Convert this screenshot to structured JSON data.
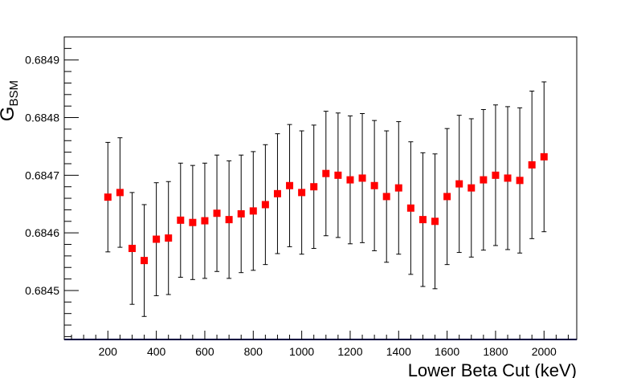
{
  "chart_data": {
    "type": "scatter",
    "title": "",
    "xlabel": "Lower Beta Cut (keV)",
    "ylabel_main": "G",
    "ylabel_sub": "BSM",
    "xlim": [
      20,
      2135
    ],
    "ylim": [
      0.684415,
      0.68494
    ],
    "x_ticks": [
      200,
      400,
      600,
      800,
      1000,
      1200,
      1400,
      1600,
      1800,
      2000
    ],
    "x_tick_labels": [
      "200",
      "400",
      "600",
      "800",
      "1000",
      "1200",
      "1400",
      "1600",
      "1800",
      "2000"
    ],
    "y_ticks": [
      0.6845,
      0.6846,
      0.6847,
      0.6848,
      0.6849
    ],
    "y_tick_labels": [
      "0.6845",
      "0.6846",
      "0.6847",
      "0.6848",
      "0.6849"
    ],
    "grid": false,
    "marker_color": "#ff0000",
    "series": [
      {
        "x": [
          200,
          250,
          300,
          350,
          400,
          450,
          500,
          550,
          600,
          650,
          700,
          750,
          800,
          850,
          900,
          950,
          1000,
          1050,
          1100,
          1150,
          1200,
          1250,
          1300,
          1350,
          1400,
          1450,
          1500,
          1550,
          1600,
          1650,
          1700,
          1750,
          1800,
          1850,
          1900,
          1950,
          2000
        ],
        "y": [
          0.684662,
          0.68467,
          0.684573,
          0.684552,
          0.684589,
          0.684591,
          0.684622,
          0.684618,
          0.684621,
          0.684634,
          0.684623,
          0.684633,
          0.684638,
          0.684649,
          0.684668,
          0.684682,
          0.68467,
          0.68468,
          0.684703,
          0.6847,
          0.684692,
          0.684695,
          0.684682,
          0.684663,
          0.684678,
          0.684643,
          0.684623,
          0.68462,
          0.684663,
          0.684685,
          0.684678,
          0.684692,
          0.6847,
          0.684695,
          0.684691,
          0.684718,
          0.684732
        ],
        "err": [
          9.5e-05,
          9.5e-05,
          9.7e-05,
          9.7e-05,
          9.8e-05,
          9.8e-05,
          9.9e-05,
          9.9e-05,
          0.0001,
          0.000101,
          0.000102,
          0.000102,
          0.000103,
          0.000104,
          0.000104,
          0.000106,
          0.000107,
          0.000107,
          0.000108,
          0.000108,
          0.000111,
          0.000112,
          0.000113,
          0.000114,
          0.000115,
          0.000115,
          0.000116,
          0.000117,
          0.000118,
          0.000119,
          0.00012,
          0.000122,
          0.000122,
          0.000124,
          0.000126,
          0.000128,
          0.00013
        ]
      }
    ]
  }
}
